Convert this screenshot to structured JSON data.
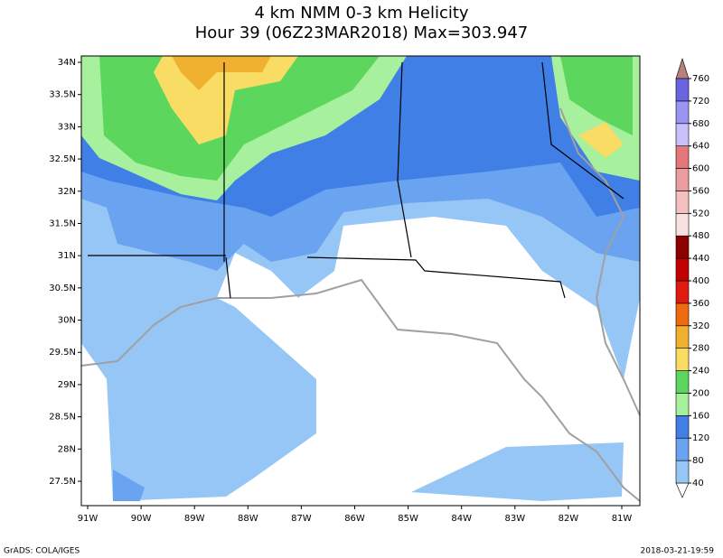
{
  "title": [
    "4 km NMM 0-3 km Helicity",
    "Hour 39 (06Z23MAR2018) Max=303.947"
  ],
  "lat_labels": [
    "34N",
    "33.5N",
    "33N",
    "32.5N",
    "32N",
    "31.5N",
    "31N",
    "30.5N",
    "30N",
    "29.5N",
    "29N",
    "28.5N",
    "28N",
    "27.5N"
  ],
  "lon_labels": [
    "91W",
    "90W",
    "89W",
    "88W",
    "87W",
    "86W",
    "85W",
    "84W",
    "83W",
    "82W",
    "81W"
  ],
  "colorbar": {
    "levels": [
      40,
      80,
      120,
      160,
      200,
      240,
      280,
      320,
      360,
      400,
      440,
      480,
      520,
      560,
      600,
      640,
      680,
      720,
      760
    ],
    "colors": [
      "#96c6f6",
      "#6aa4f0",
      "#3f7fe6",
      "#a6f09e",
      "#5cd65c",
      "#f8dc64",
      "#f0b030",
      "#f06a10",
      "#e01a10",
      "#c00000",
      "#8c0000",
      "#fae0e0",
      "#f4c0c0",
      "#ec9c9c",
      "#e47878",
      "#c8c0f8",
      "#9a94f2",
      "#6a64e0"
    ],
    "below_color": "#ffffff",
    "above_color": "#b88078"
  },
  "footer_left": "GrADS: COLA/IGES",
  "footer_right": "2018-03-21-19:59"
}
